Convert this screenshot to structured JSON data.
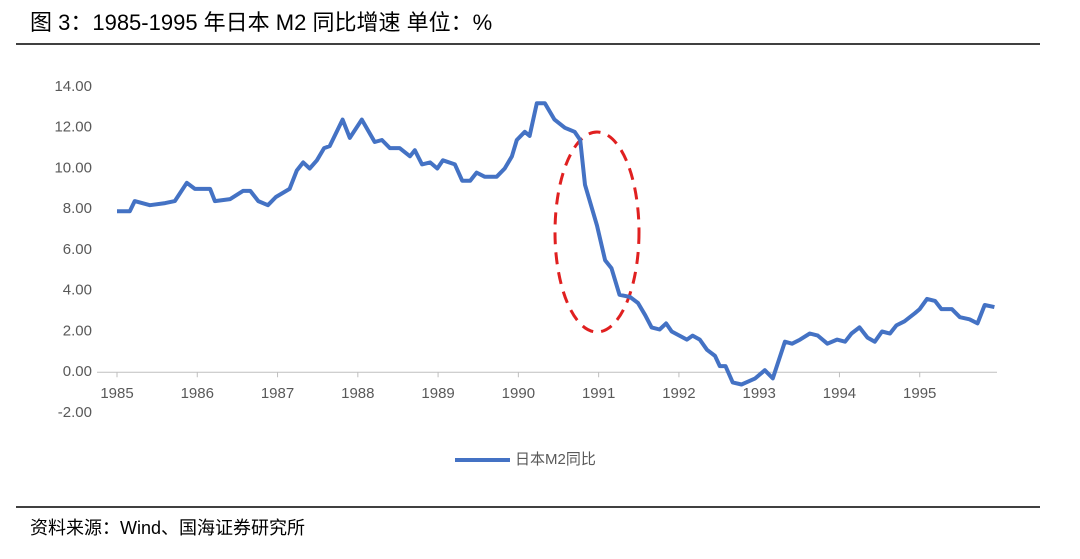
{
  "chart_data": {
    "type": "line",
    "title": "图 3：1985-1995 年日本 M2 同比增速 单位：%",
    "source": "资料来源：Wind、国海证券研究所",
    "x": [
      1985.0,
      1985.16,
      1985.22,
      1985.41,
      1985.6,
      1985.72,
      1985.87,
      1985.97,
      1986.16,
      1986.22,
      1986.41,
      1986.57,
      1986.66,
      1986.76,
      1986.88,
      1986.98,
      1987.15,
      1987.24,
      1987.32,
      1987.4,
      1987.49,
      1987.58,
      1987.65,
      1987.81,
      1987.9,
      1988.05,
      1988.21,
      1988.3,
      1988.4,
      1988.52,
      1988.65,
      1988.71,
      1988.8,
      1988.9,
      1988.99,
      1989.06,
      1989.21,
      1989.3,
      1989.4,
      1989.48,
      1989.58,
      1989.73,
      1989.83,
      1989.92,
      1989.98,
      1990.08,
      1990.14,
      1990.23,
      1990.33,
      1990.45,
      1990.58,
      1990.7,
      1990.77,
      1990.83,
      1990.98,
      1991.08,
      1991.16,
      1991.26,
      1991.39,
      1991.49,
      1991.58,
      1991.66,
      1991.76,
      1991.84,
      1991.91,
      1992.1,
      1992.17,
      1992.26,
      1992.35,
      1992.45,
      1992.51,
      1992.58,
      1992.67,
      1992.78,
      1992.95,
      1993.07,
      1993.17,
      1993.32,
      1993.41,
      1993.51,
      1993.63,
      1993.73,
      1993.85,
      1993.97,
      1994.07,
      1994.15,
      1994.25,
      1994.35,
      1994.44,
      1994.53,
      1994.63,
      1994.71,
      1994.81,
      1994.94,
      1995.0,
      1995.09,
      1995.19,
      1995.27,
      1995.4,
      1995.5,
      1995.62,
      1995.72,
      1995.81,
      1995.93
    ],
    "series": [
      {
        "name": "日本M2同比",
        "color": "#4472c4",
        "values": [
          7.9,
          7.9,
          8.4,
          8.2,
          8.3,
          8.4,
          9.3,
          9.0,
          9.0,
          8.4,
          8.5,
          8.9,
          8.9,
          8.4,
          8.2,
          8.6,
          9.0,
          9.9,
          10.3,
          10.0,
          10.4,
          11.0,
          11.1,
          12.4,
          11.5,
          12.4,
          11.3,
          11.4,
          11.0,
          11.0,
          10.6,
          10.9,
          10.2,
          10.3,
          10.0,
          10.4,
          10.2,
          9.4,
          9.4,
          9.8,
          9.6,
          9.6,
          10.0,
          10.6,
          11.4,
          11.8,
          11.6,
          13.2,
          13.2,
          12.4,
          12.0,
          11.8,
          11.4,
          9.2,
          7.2,
          5.5,
          5.1,
          3.8,
          3.7,
          3.4,
          2.8,
          2.2,
          2.1,
          2.4,
          2.0,
          1.6,
          1.8,
          1.6,
          1.1,
          0.8,
          0.3,
          0.3,
          -0.5,
          -0.6,
          -0.3,
          0.1,
          -0.3,
          1.5,
          1.4,
          1.6,
          1.9,
          1.8,
          1.4,
          1.6,
          1.5,
          1.9,
          2.2,
          1.7,
          1.5,
          2.0,
          1.9,
          2.3,
          2.5,
          2.9,
          3.1,
          3.6,
          3.5,
          3.1,
          3.1,
          2.7,
          2.6,
          2.4,
          3.3,
          3.2
        ]
      }
    ],
    "xlim": [
      1985,
      1996
    ],
    "xticks": [
      1985,
      1986,
      1987,
      1988,
      1989,
      1990,
      1991,
      1992,
      1993,
      1994,
      1995
    ],
    "ylim": [
      -2,
      14
    ],
    "yticks": [
      {
        "value": -2,
        "label": "-2.00"
      },
      {
        "value": 0,
        "label": "0.00"
      },
      {
        "value": 2,
        "label": "2.00"
      },
      {
        "value": 4,
        "label": "4.00"
      },
      {
        "value": 6,
        "label": "6.00"
      },
      {
        "value": 8,
        "label": "8.00"
      },
      {
        "value": 10,
        "label": "10.00"
      },
      {
        "value": 12,
        "label": "12.00"
      },
      {
        "value": 14,
        "label": "14.00"
      }
    ],
    "legend": "bottom"
  }
}
